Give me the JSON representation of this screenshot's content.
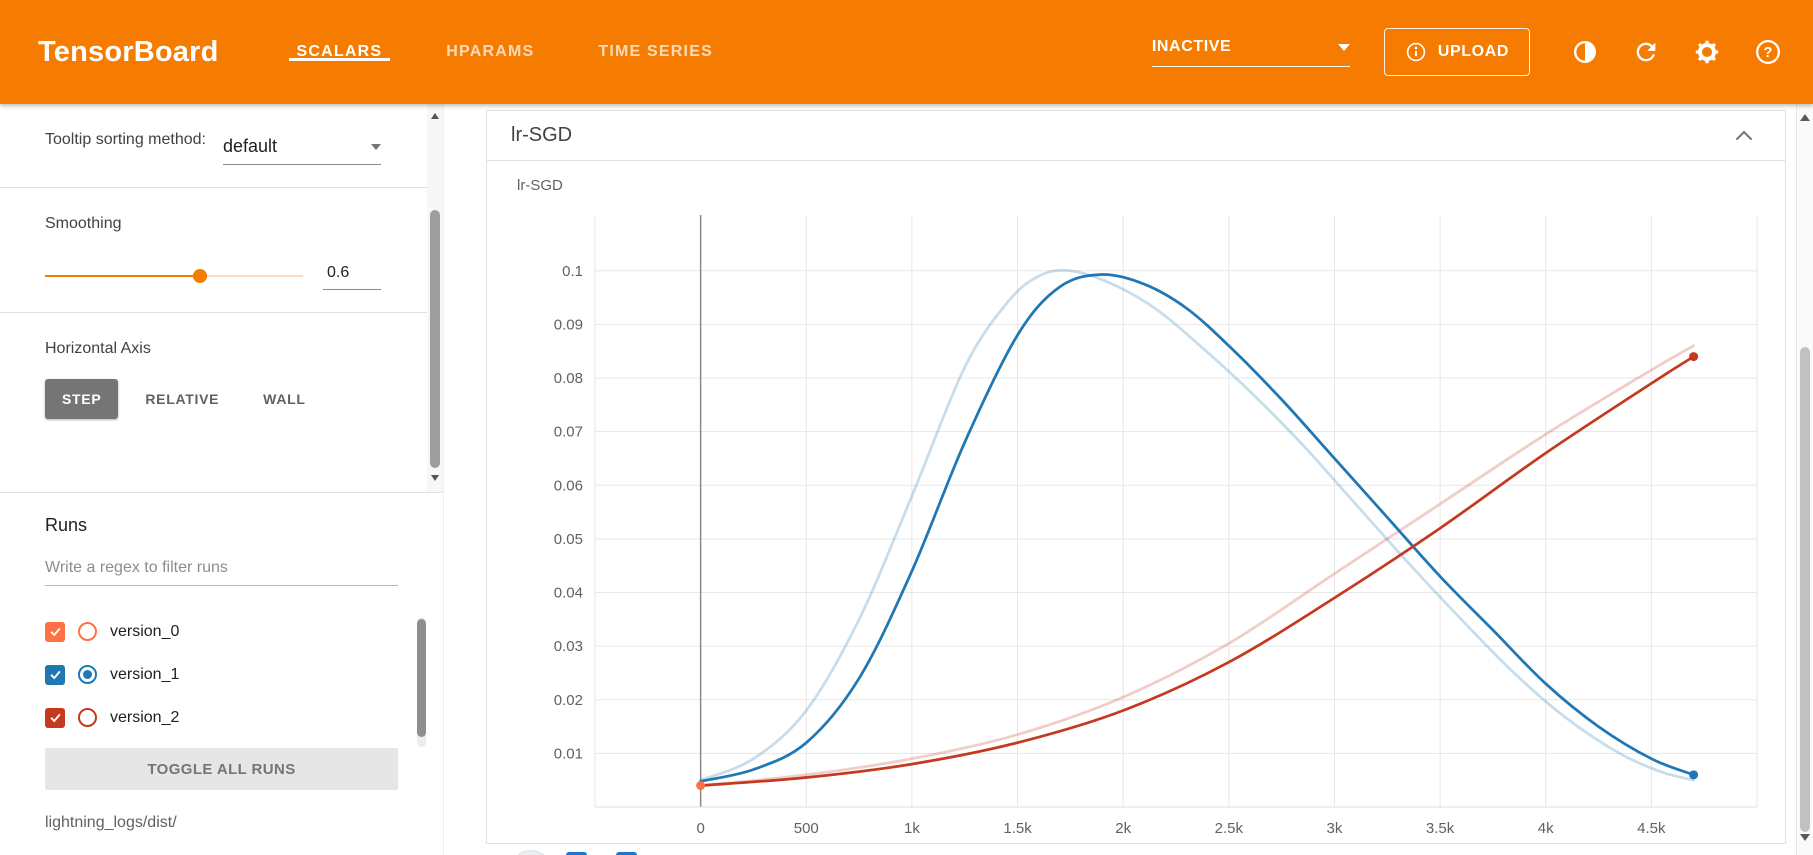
{
  "colors": {
    "header": "#f57c00",
    "accent": "#f57c00"
  },
  "header": {
    "logo": "TensorBoard",
    "tabs": [
      {
        "label": "SCALARS",
        "active": true
      },
      {
        "label": "HPARAMS",
        "active": false
      },
      {
        "label": "TIME SERIES",
        "active": false
      }
    ],
    "status_dropdown": {
      "value": "INACTIVE"
    },
    "upload_button": "UPLOAD",
    "icons": [
      {
        "name": "brightness-toggle-icon"
      },
      {
        "name": "refresh-icon"
      },
      {
        "name": "settings-gear-icon"
      },
      {
        "name": "help-icon"
      }
    ]
  },
  "sidebar": {
    "tooltip_sorting": {
      "label": "Tooltip sorting method:",
      "value": "default"
    },
    "smoothing": {
      "label": "Smoothing",
      "value": "0.6",
      "min": 0,
      "max": 1
    },
    "horizontal_axis": {
      "label": "Horizontal Axis",
      "options": [
        {
          "label": "STEP",
          "active": true
        },
        {
          "label": "RELATIVE",
          "active": false
        },
        {
          "label": "WALL",
          "active": false
        }
      ]
    },
    "runs": {
      "title": "Runs",
      "filter_placeholder": "Write a regex to filter runs",
      "items": [
        {
          "label": "version_0",
          "color": "#ff7043",
          "checked": true,
          "radio_selected": false
        },
        {
          "label": "version_1",
          "color": "#1f77b4",
          "checked": true,
          "radio_selected": true
        },
        {
          "label": "version_2",
          "color": "#c5391f",
          "checked": true,
          "radio_selected": false
        }
      ],
      "toggle_all_label": "TOGGLE ALL RUNS",
      "logdir": "lightning_logs/dist/"
    }
  },
  "main": {
    "card": {
      "title": "lr-SGD"
    },
    "chart_title": "lr-SGD"
  },
  "chart_data": {
    "type": "line",
    "title": "lr-SGD",
    "xlim": [
      -500,
      5000
    ],
    "ylim": [
      0,
      0.1104
    ],
    "grid": true,
    "smoothing": 0.6,
    "xticks": [
      {
        "v": 0,
        "label": "0"
      },
      {
        "v": 500,
        "label": "500"
      },
      {
        "v": 1000,
        "label": "1k"
      },
      {
        "v": 1500,
        "label": "1.5k"
      },
      {
        "v": 2000,
        "label": "2k"
      },
      {
        "v": 2500,
        "label": "2.5k"
      },
      {
        "v": 3000,
        "label": "3k"
      },
      {
        "v": 3500,
        "label": "3.5k"
      },
      {
        "v": 4000,
        "label": "4k"
      },
      {
        "v": 4500,
        "label": "4.5k"
      }
    ],
    "extra_gridlines_x": [
      -500,
      5000
    ],
    "yticks": [
      {
        "v": 0.01,
        "label": "0.01"
      },
      {
        "v": 0.02,
        "label": "0.02"
      },
      {
        "v": 0.03,
        "label": "0.03"
      },
      {
        "v": 0.04,
        "label": "0.04"
      },
      {
        "v": 0.05,
        "label": "0.05"
      },
      {
        "v": 0.06,
        "label": "0.06"
      },
      {
        "v": 0.07,
        "label": "0.07"
      },
      {
        "v": 0.08,
        "label": "0.08"
      },
      {
        "v": 0.09,
        "label": "0.09"
      },
      {
        "v": 0.1,
        "label": "0.1"
      }
    ],
    "series": [
      {
        "name": "version_0",
        "color": "#ff7043",
        "smoothed": [
          [
            0,
            0.004
          ]
        ],
        "original": [
          [
            0,
            0.004
          ]
        ],
        "markers": [
          [
            0,
            0.004
          ]
        ]
      },
      {
        "name": "version_1",
        "color": "#1f77b4",
        "smoothed": [
          [
            0,
            0.0048
          ],
          [
            250,
            0.007
          ],
          [
            500,
            0.012
          ],
          [
            750,
            0.024
          ],
          [
            1000,
            0.044
          ],
          [
            1250,
            0.068
          ],
          [
            1500,
            0.088
          ],
          [
            1700,
            0.097
          ],
          [
            1900,
            0.0993
          ],
          [
            2100,
            0.0975
          ],
          [
            2300,
            0.093
          ],
          [
            2500,
            0.086
          ],
          [
            2750,
            0.076
          ],
          [
            3000,
            0.065
          ],
          [
            3250,
            0.054
          ],
          [
            3500,
            0.043
          ],
          [
            3750,
            0.033
          ],
          [
            4000,
            0.023
          ],
          [
            4250,
            0.015
          ],
          [
            4500,
            0.009
          ],
          [
            4700,
            0.006
          ]
        ],
        "original": [
          [
            0,
            0.005
          ],
          [
            250,
            0.009
          ],
          [
            500,
            0.018
          ],
          [
            750,
            0.035
          ],
          [
            1000,
            0.058
          ],
          [
            1250,
            0.082
          ],
          [
            1450,
            0.094
          ],
          [
            1600,
            0.099
          ],
          [
            1750,
            0.1
          ],
          [
            1950,
            0.0975
          ],
          [
            2150,
            0.093
          ],
          [
            2350,
            0.0865
          ],
          [
            2600,
            0.0775
          ],
          [
            2850,
            0.0675
          ],
          [
            3100,
            0.0565
          ],
          [
            3350,
            0.0455
          ],
          [
            3600,
            0.035
          ],
          [
            3850,
            0.025
          ],
          [
            4100,
            0.0165
          ],
          [
            4350,
            0.01
          ],
          [
            4550,
            0.0065
          ],
          [
            4700,
            0.005
          ]
        ],
        "markers": [
          [
            4700,
            0.006
          ]
        ]
      },
      {
        "name": "version_2",
        "color": "#c5391f",
        "smoothed": [
          [
            0,
            0.004
          ],
          [
            500,
            0.0055
          ],
          [
            1000,
            0.008
          ],
          [
            1500,
            0.012
          ],
          [
            2000,
            0.018
          ],
          [
            2500,
            0.027
          ],
          [
            3000,
            0.039
          ],
          [
            3500,
            0.052
          ],
          [
            4000,
            0.066
          ],
          [
            4500,
            0.079
          ],
          [
            4700,
            0.084
          ]
        ],
        "original": [
          [
            0,
            0.004
          ],
          [
            500,
            0.006
          ],
          [
            1000,
            0.009
          ],
          [
            1500,
            0.0135
          ],
          [
            2000,
            0.0205
          ],
          [
            2500,
            0.0305
          ],
          [
            3000,
            0.0435
          ],
          [
            3500,
            0.0565
          ],
          [
            4000,
            0.0695
          ],
          [
            4500,
            0.0815
          ],
          [
            4700,
            0.086
          ]
        ],
        "markers": [
          [
            4700,
            0.084
          ]
        ]
      }
    ]
  }
}
